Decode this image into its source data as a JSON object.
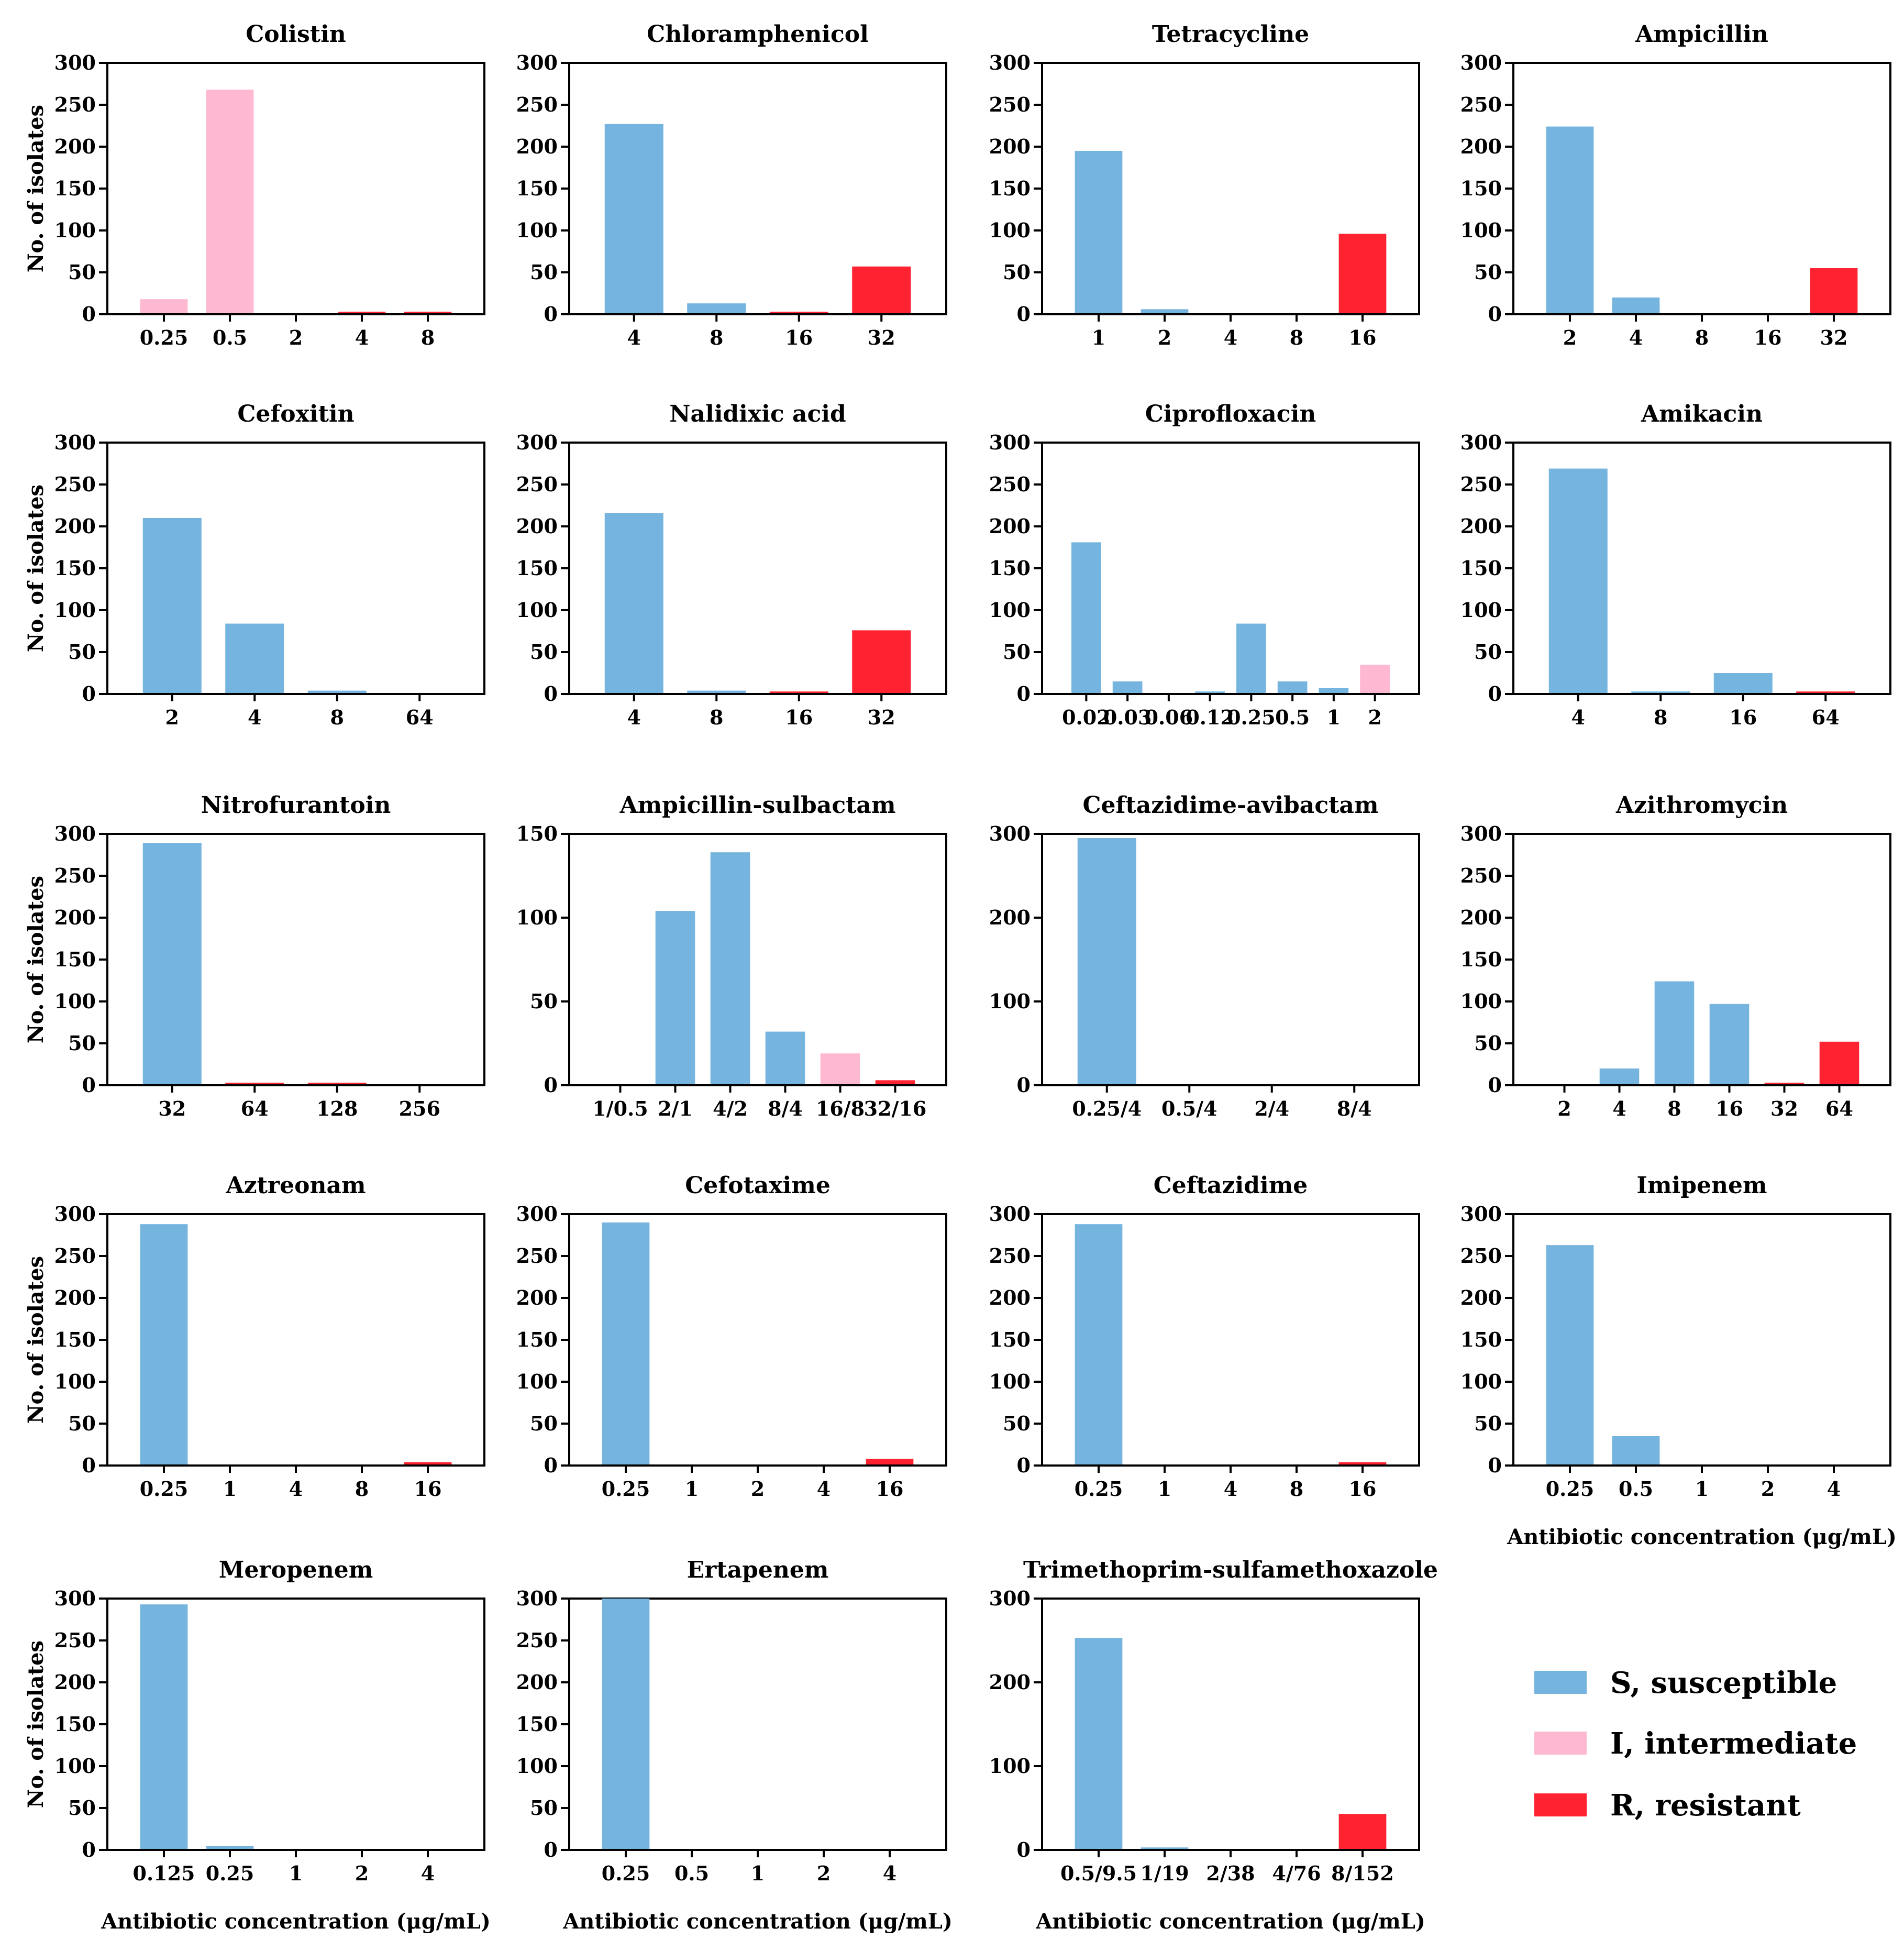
{
  "colors": {
    "S": "#74b4df",
    "I": "#ffb8d2",
    "R": "#ff2230"
  },
  "y_axis_label": "No. of isolates",
  "x_axis_label": "Antibiotic concentration (μg/mL)",
  "legend": [
    {
      "key": "S",
      "label": "S, susceptible"
    },
    {
      "key": "I",
      "label": "I, intermediate"
    },
    {
      "key": "R",
      "label": "R, resistant"
    }
  ],
  "chart_data": [
    {
      "type": "bar",
      "title": "Colistin",
      "ylim": [
        0,
        300
      ],
      "yticks": [
        0,
        50,
        100,
        150,
        200,
        250,
        300
      ],
      "categories": [
        "0.25",
        "0.5",
        "2",
        "4",
        "8"
      ],
      "values": [
        18,
        268,
        0,
        3,
        3
      ],
      "status": [
        "I",
        "I",
        "I",
        "R",
        "R"
      ]
    },
    {
      "type": "bar",
      "title": "Chloramphenicol",
      "ylim": [
        0,
        300
      ],
      "yticks": [
        0,
        50,
        100,
        150,
        200,
        250,
        300
      ],
      "categories": [
        "4",
        "8",
        "16",
        "32"
      ],
      "values": [
        227,
        13,
        3,
        57
      ],
      "status": [
        "S",
        "S",
        "R",
        "R"
      ]
    },
    {
      "type": "bar",
      "title": "Tetracycline",
      "ylim": [
        0,
        300
      ],
      "yticks": [
        0,
        50,
        100,
        150,
        200,
        250,
        300
      ],
      "categories": [
        "1",
        "2",
        "4",
        "8",
        "16"
      ],
      "values": [
        195,
        6,
        0,
        0,
        96
      ],
      "status": [
        "S",
        "S",
        "S",
        "S",
        "R"
      ]
    },
    {
      "type": "bar",
      "title": "Ampicillin",
      "ylim": [
        0,
        300
      ],
      "yticks": [
        0,
        50,
        100,
        150,
        200,
        250,
        300
      ],
      "categories": [
        "2",
        "4",
        "8",
        "16",
        "32"
      ],
      "values": [
        224,
        20,
        0,
        0,
        55
      ],
      "status": [
        "S",
        "S",
        "S",
        "S",
        "R"
      ]
    },
    {
      "type": "bar",
      "title": "Cefoxitin",
      "ylim": [
        0,
        300
      ],
      "yticks": [
        0,
        50,
        100,
        150,
        200,
        250,
        300
      ],
      "categories": [
        "2",
        "4",
        "8",
        "64"
      ],
      "values": [
        210,
        84,
        4,
        0
      ],
      "status": [
        "S",
        "S",
        "S",
        "S"
      ]
    },
    {
      "type": "bar",
      "title": "Nalidixic acid",
      "ylim": [
        0,
        300
      ],
      "yticks": [
        0,
        50,
        100,
        150,
        200,
        250,
        300
      ],
      "categories": [
        "4",
        "8",
        "16",
        "32"
      ],
      "values": [
        216,
        4,
        3,
        76
      ],
      "status": [
        "S",
        "S",
        "R",
        "R"
      ]
    },
    {
      "type": "bar",
      "title": "Ciprofloxacin",
      "ylim": [
        0,
        300
      ],
      "yticks": [
        0,
        50,
        100,
        150,
        200,
        250,
        300
      ],
      "categories": [
        "0.02",
        "0.03",
        "0.06",
        "0.12",
        "0.25",
        "0.5",
        "1",
        "2"
      ],
      "values": [
        181,
        15,
        0,
        3,
        84,
        15,
        7,
        35
      ],
      "status": [
        "S",
        "S",
        "S",
        "S",
        "S",
        "S",
        "S",
        "I"
      ]
    },
    {
      "type": "bar",
      "title": "Amikacin",
      "ylim": [
        0,
        300
      ],
      "yticks": [
        0,
        50,
        100,
        150,
        200,
        250,
        300
      ],
      "categories": [
        "4",
        "8",
        "16",
        "64"
      ],
      "values": [
        269,
        3,
        25,
        3
      ],
      "status": [
        "S",
        "S",
        "S",
        "R"
      ]
    },
    {
      "type": "bar",
      "title": "Nitrofurantoin",
      "ylim": [
        0,
        300
      ],
      "yticks": [
        0,
        50,
        100,
        150,
        200,
        250,
        300
      ],
      "categories": [
        "32",
        "64",
        "128",
        "256"
      ],
      "values": [
        289,
        3,
        3,
        0
      ],
      "status": [
        "S",
        "R",
        "R",
        "R"
      ]
    },
    {
      "type": "bar",
      "title": "Ampicillin-sulbactam",
      "ylim": [
        0,
        150
      ],
      "yticks": [
        0,
        50,
        100,
        150
      ],
      "categories": [
        "1/0.5",
        "2/1",
        "4/2",
        "8/4",
        "16/8",
        "32/16"
      ],
      "values": [
        0,
        104,
        139,
        32,
        19,
        3
      ],
      "status": [
        "S",
        "S",
        "S",
        "S",
        "I",
        "R"
      ]
    },
    {
      "type": "bar",
      "title": "Ceftazidime-avibactam",
      "ylim": [
        0,
        300
      ],
      "yticks": [
        0,
        100,
        200,
        300
      ],
      "categories": [
        "0.25/4",
        "0.5/4",
        "2/4",
        "8/4"
      ],
      "values": [
        295,
        0,
        0,
        0
      ],
      "status": [
        "S",
        "S",
        "S",
        "S"
      ]
    },
    {
      "type": "bar",
      "title": "Azithromycin",
      "ylim": [
        0,
        300
      ],
      "yticks": [
        0,
        50,
        100,
        150,
        200,
        250,
        300
      ],
      "categories": [
        "2",
        "4",
        "8",
        "16",
        "32",
        "64"
      ],
      "values": [
        0,
        20,
        124,
        97,
        3,
        52
      ],
      "status": [
        "S",
        "S",
        "S",
        "S",
        "R",
        "R"
      ]
    },
    {
      "type": "bar",
      "title": "Aztreonam",
      "ylim": [
        0,
        300
      ],
      "yticks": [
        0,
        50,
        100,
        150,
        200,
        250,
        300
      ],
      "categories": [
        "0.25",
        "1",
        "4",
        "8",
        "16"
      ],
      "values": [
        288,
        0,
        1,
        1,
        4
      ],
      "status": [
        "S",
        "S",
        "S",
        "S",
        "R"
      ]
    },
    {
      "type": "bar",
      "title": "Cefotaxime",
      "ylim": [
        0,
        300
      ],
      "yticks": [
        0,
        50,
        100,
        150,
        200,
        250,
        300
      ],
      "categories": [
        "0.25",
        "1",
        "2",
        "4",
        "16"
      ],
      "values": [
        290,
        0,
        0,
        0,
        8
      ],
      "status": [
        "S",
        "S",
        "S",
        "S",
        "R"
      ]
    },
    {
      "type": "bar",
      "title": "Ceftazidime",
      "ylim": [
        0,
        300
      ],
      "yticks": [
        0,
        50,
        100,
        150,
        200,
        250,
        300
      ],
      "categories": [
        "0.25",
        "1",
        "4",
        "8",
        "16"
      ],
      "values": [
        288,
        0,
        1,
        1,
        4
      ],
      "status": [
        "S",
        "S",
        "S",
        "S",
        "R"
      ]
    },
    {
      "type": "bar",
      "title": "Imipenem",
      "ylim": [
        0,
        300
      ],
      "yticks": [
        0,
        50,
        100,
        150,
        200,
        250,
        300
      ],
      "categories": [
        "0.25",
        "0.5",
        "1",
        "2",
        "4"
      ],
      "values": [
        263,
        35,
        0,
        0,
        0
      ],
      "status": [
        "S",
        "S",
        "S",
        "S",
        "S"
      ]
    },
    {
      "type": "bar",
      "title": "Meropenem",
      "ylim": [
        0,
        300
      ],
      "yticks": [
        0,
        50,
        100,
        150,
        200,
        250,
        300
      ],
      "categories": [
        "0.125",
        "0.25",
        "1",
        "2",
        "4"
      ],
      "values": [
        293,
        5,
        0,
        0,
        0
      ],
      "status": [
        "S",
        "S",
        "S",
        "S",
        "S"
      ]
    },
    {
      "type": "bar",
      "title": "Ertapenem",
      "ylim": [
        0,
        300
      ],
      "yticks": [
        0,
        50,
        100,
        150,
        200,
        250,
        300
      ],
      "categories": [
        "0.25",
        "0.5",
        "1",
        "2",
        "4"
      ],
      "values": [
        300,
        0,
        0,
        0,
        0
      ],
      "status": [
        "S",
        "S",
        "S",
        "S",
        "S"
      ]
    },
    {
      "type": "bar",
      "title": "Trimethoprim-sulfamethoxazole",
      "ylim": [
        0,
        300
      ],
      "yticks": [
        0,
        100,
        200,
        300
      ],
      "categories": [
        "0.5/9.5",
        "1/19",
        "2/38",
        "4/76",
        "8/152"
      ],
      "values": [
        253,
        3,
        0,
        0,
        43
      ],
      "status": [
        "S",
        "S",
        "S",
        "S",
        "R"
      ]
    }
  ]
}
